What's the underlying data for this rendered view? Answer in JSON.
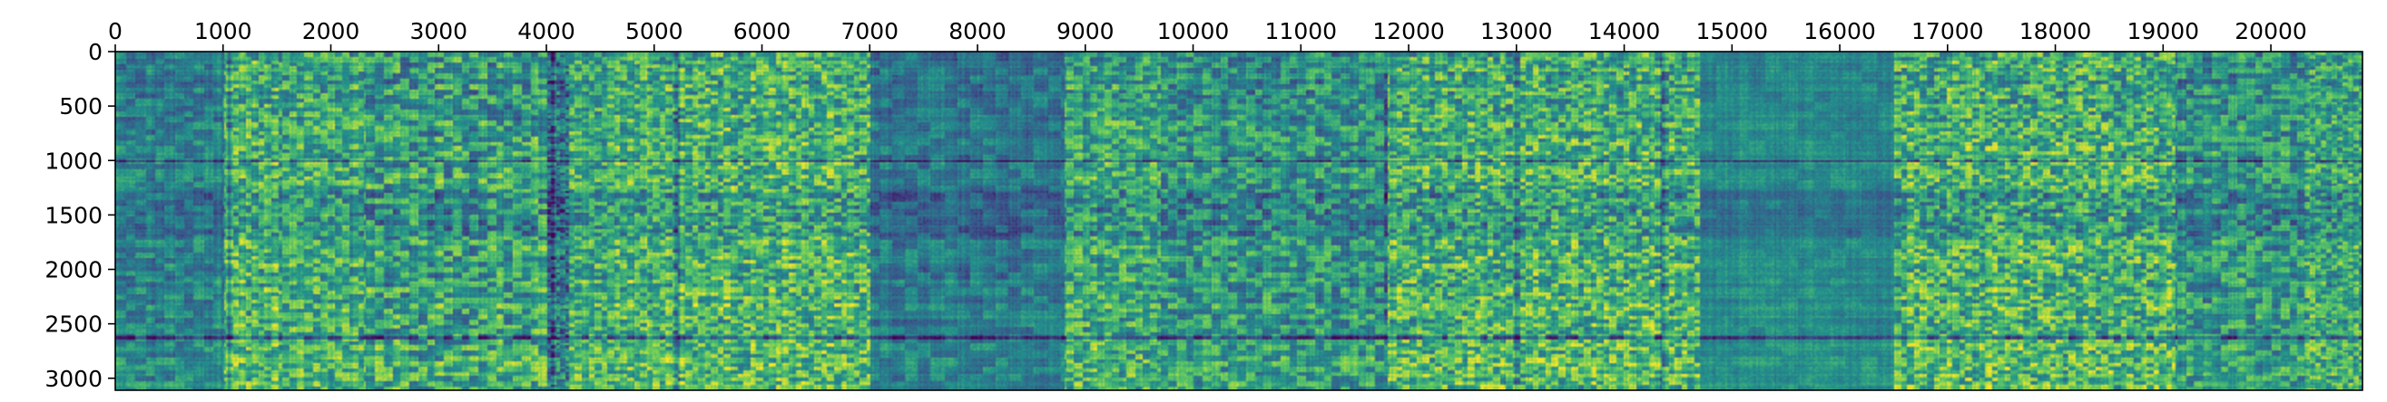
{
  "chart_data": {
    "type": "heatmap",
    "title": "",
    "xlabel": "",
    "ylabel": "",
    "x_axis_position": "top",
    "x_range": [
      0,
      20850
    ],
    "y_range": [
      3110,
      0
    ],
    "x_ticks": [
      0,
      1000,
      2000,
      3000,
      4000,
      5000,
      6000,
      7000,
      8000,
      9000,
      10000,
      11000,
      12000,
      13000,
      14000,
      15000,
      16000,
      17000,
      18000,
      19000,
      20000
    ],
    "x_tick_labels": [
      "0",
      "1000",
      "2000",
      "3000",
      "4000",
      "5000",
      "6000",
      "7000",
      "8000",
      "9000",
      "10000",
      "11000",
      "12000",
      "13000",
      "14000",
      "15000",
      "16000",
      "17000",
      "18000",
      "19000",
      "20000"
    ],
    "y_ticks": [
      0,
      500,
      1000,
      1500,
      2000,
      2500,
      3000
    ],
    "y_tick_labels": [
      "0",
      "500",
      "1000",
      "1500",
      "2000",
      "2500",
      "3000"
    ],
    "grid": false,
    "colormap": "viridis",
    "colormap_stops": [
      "#440154",
      "#3b528b",
      "#21918c",
      "#5ec962",
      "#fde725"
    ],
    "x_segments": [
      {
        "range": [
          0,
          1000
        ],
        "mean": 0.42,
        "var": 0.18,
        "period": 90
      },
      {
        "range": [
          1000,
          1500
        ],
        "mean": 0.62,
        "var": 0.32,
        "period": 60
      },
      {
        "range": [
          1500,
          2300
        ],
        "mean": 0.6,
        "var": 0.3,
        "period": 70
      },
      {
        "range": [
          2300,
          4000
        ],
        "mean": 0.55,
        "var": 0.34,
        "period": 80
      },
      {
        "range": [
          4000,
          4200
        ],
        "mean": 0.35,
        "var": 0.3,
        "period": 40
      },
      {
        "range": [
          4200,
          5100
        ],
        "mean": 0.62,
        "var": 0.3,
        "period": 60
      },
      {
        "range": [
          5100,
          7000
        ],
        "mean": 0.63,
        "var": 0.34,
        "period": 60
      },
      {
        "range": [
          7000,
          8800
        ],
        "mean": 0.38,
        "var": 0.15,
        "period": 120
      },
      {
        "range": [
          8800,
          9700
        ],
        "mean": 0.58,
        "var": 0.3,
        "period": 70
      },
      {
        "range": [
          9700,
          11800
        ],
        "mean": 0.5,
        "var": 0.28,
        "period": 80
      },
      {
        "range": [
          11800,
          14700
        ],
        "mean": 0.62,
        "var": 0.34,
        "period": 60
      },
      {
        "range": [
          14700,
          16500
        ],
        "mean": 0.45,
        "var": 0.08,
        "period": 150
      },
      {
        "range": [
          16500,
          19100
        ],
        "mean": 0.62,
        "var": 0.34,
        "period": 60
      },
      {
        "range": [
          19100,
          20300
        ],
        "mean": 0.5,
        "var": 0.28,
        "period": 80
      },
      {
        "range": [
          20300,
          20850
        ],
        "mean": 0.58,
        "var": 0.3,
        "period": 50
      }
    ],
    "y_segments": [
      {
        "range": [
          0,
          400
        ],
        "mean": 0.0
      },
      {
        "range": [
          400,
          1000
        ],
        "mean": 0.02
      },
      {
        "range": [
          1000,
          1250
        ],
        "mean": 0.05
      },
      {
        "range": [
          1250,
          1700
        ],
        "mean": -0.06
      },
      {
        "range": [
          1700,
          2300
        ],
        "mean": 0.03
      },
      {
        "range": [
          2300,
          2600
        ],
        "mean": 0.05
      },
      {
        "range": [
          2600,
          3110
        ],
        "mean": 0.06
      }
    ],
    "dark_rows": [
      1000,
      2620
    ],
    "dark_cols": [
      1050,
      4050,
      5200,
      11780,
      13000,
      14350
    ]
  }
}
